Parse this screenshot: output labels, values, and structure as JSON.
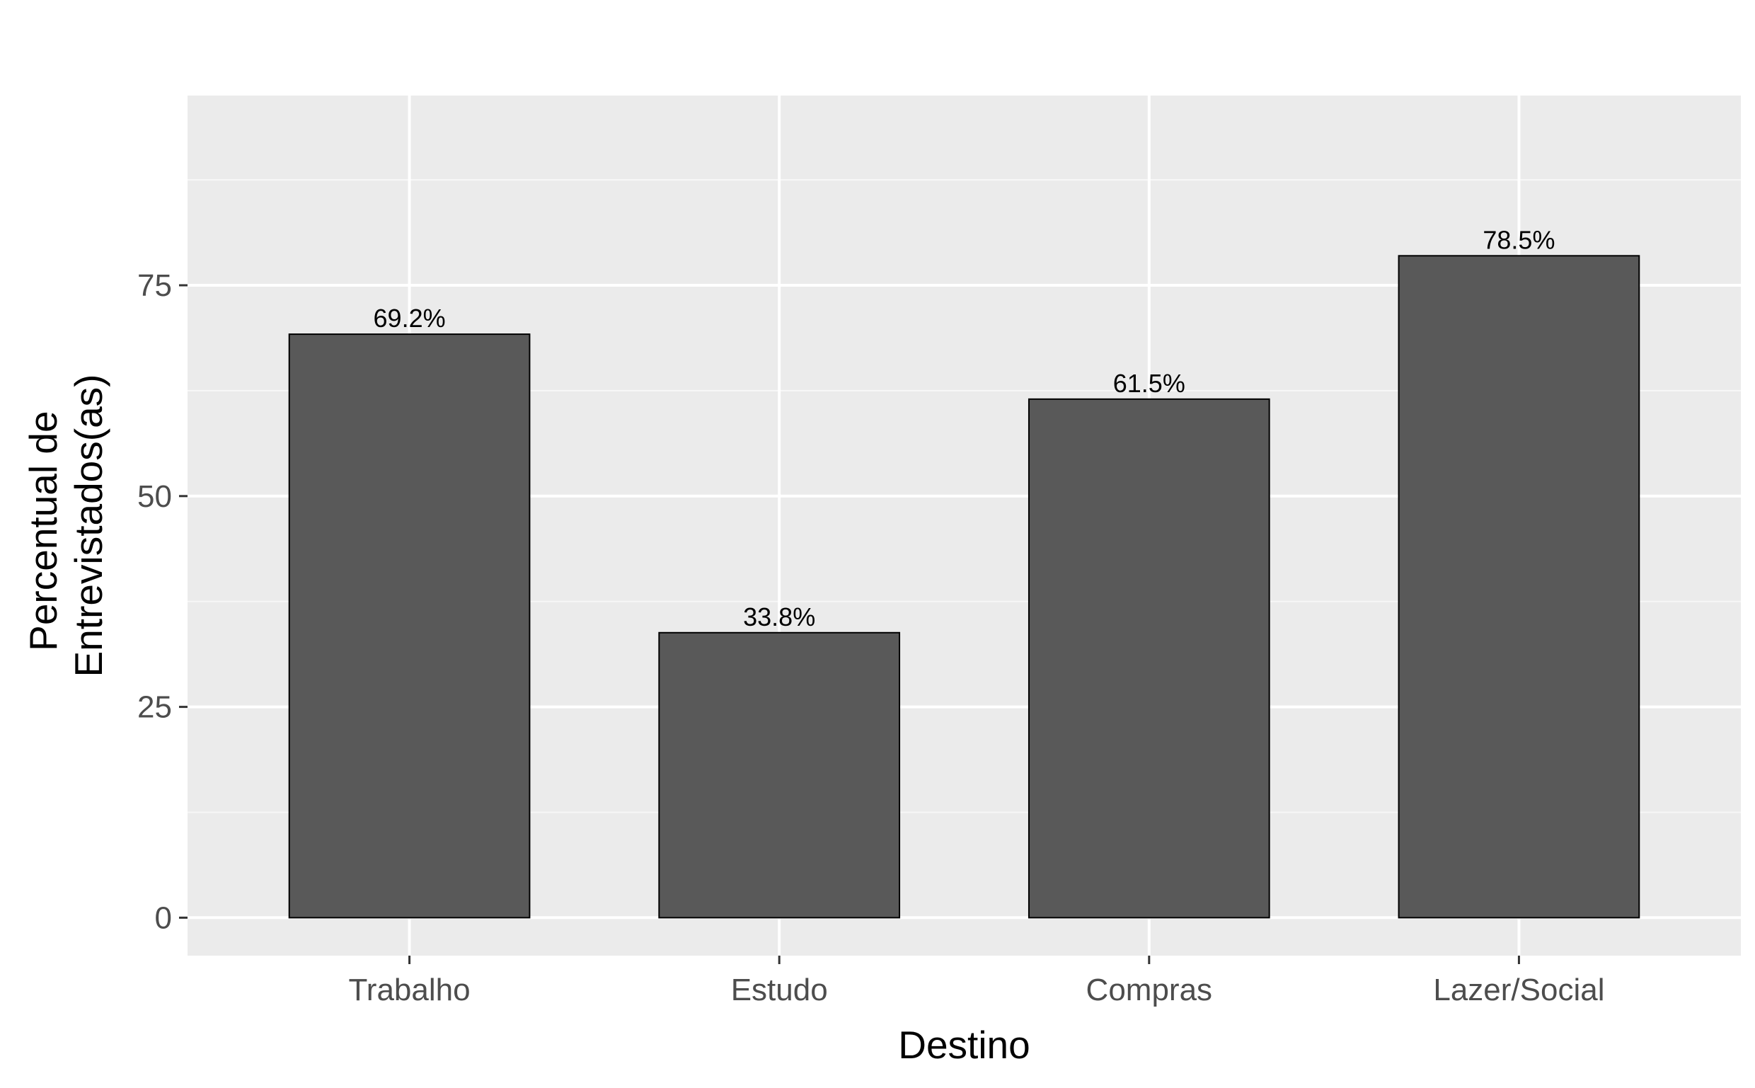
{
  "chart_data": {
    "type": "bar",
    "categories": [
      "Trabalho",
      "Estudo",
      "Compras",
      "Lazer/Social"
    ],
    "values": [
      69.2,
      33.8,
      61.5,
      78.5
    ],
    "data_labels": [
      "69.2%",
      "33.8%",
      "61.5%",
      "78.5%"
    ],
    "title": "",
    "xlabel": "Destino",
    "ylabel_lines": [
      "Percentual de",
      "Entrevistados(as)"
    ],
    "ylim": [
      -4.5,
      97.5
    ],
    "y_ticks": [
      0,
      25,
      50,
      75
    ],
    "y_tick_labels": [
      "0",
      "25",
      "50",
      "75"
    ],
    "grid": true,
    "legend": "none",
    "colors": {
      "panel_background": "#ebebeb",
      "grid_major": "#ffffff",
      "grid_minor": "#f7f7f7",
      "bar_fill": "#595959",
      "bar_outline": "#000000",
      "tick_text": "#4d4d4d",
      "axis_text": "#000000"
    }
  }
}
